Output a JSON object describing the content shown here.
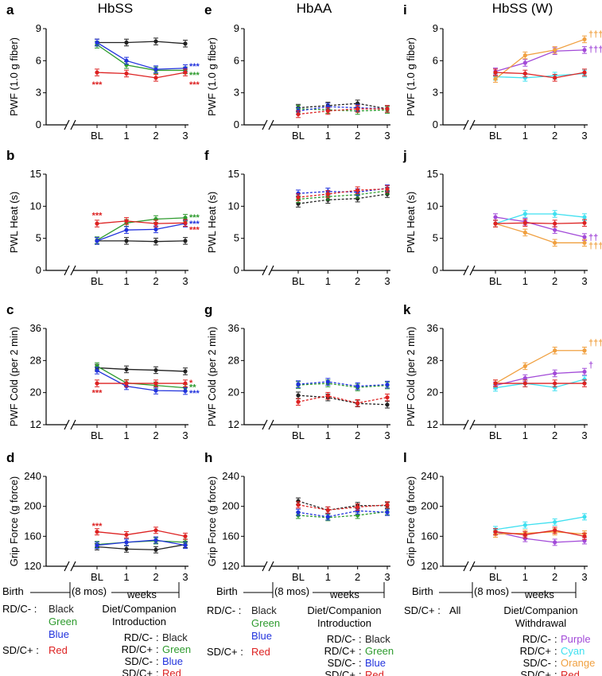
{
  "columns": [
    {
      "title": "HbSS"
    },
    {
      "title": "HbAA"
    },
    {
      "title": "HbSS (W)"
    }
  ],
  "colors": {
    "black": "#222222",
    "green": "#2e9b2e",
    "blue": "#2233dd",
    "red": "#dd2222",
    "purple": "#a24ad8",
    "cyan": "#3fe0f0",
    "orange": "#f0a040"
  },
  "bottom": {
    "birth": "Birth",
    "age": "(8 mos)",
    "weeks": "weeks",
    "rd_c_minus": "RD/C- :",
    "black": "Black",
    "green": "Green",
    "blue": "Blue",
    "sd_c_plus": "SD/C+ :",
    "red": "Red",
    "all": "All",
    "intro_title_1": "Diet/Companion",
    "intro_title_2": "Introduction",
    "withdrawal_title_1": "Diet/Companion",
    "withdrawal_title_2": "Withdrawal",
    "legend_groups": [
      "RD/C-",
      "RD/C+",
      "SD/C-",
      "SD/C+"
    ],
    "intro_colors": [
      "Black",
      "Green",
      "Blue",
      "Red"
    ],
    "withdrawal_colors": [
      "Purple",
      "Cyan",
      "Orange",
      "Red"
    ]
  },
  "chart_data": [
    {
      "panel": "a",
      "type": "line",
      "ylabel": "PWF (1.0 g fiber)",
      "ylim": [
        0,
        9
      ],
      "yticks": [
        0,
        3,
        6,
        9
      ],
      "x": [
        "BL",
        "1",
        "2",
        "3"
      ],
      "series": [
        {
          "color": "black",
          "values": [
            7.7,
            7.7,
            7.8,
            7.6
          ]
        },
        {
          "color": "green",
          "values": [
            7.5,
            5.6,
            5.1,
            5.1
          ]
        },
        {
          "color": "blue",
          "values": [
            7.7,
            6.0,
            5.2,
            5.3
          ]
        },
        {
          "color": "red",
          "values": [
            4.9,
            4.8,
            4.4,
            4.9
          ]
        }
      ],
      "annotations": [
        {
          "text": "***",
          "color": "red",
          "x": "BL",
          "y": 3.8
        },
        {
          "text": "***",
          "color": "red",
          "x": "3",
          "y": 3.8
        },
        {
          "text": "***",
          "color": "blue",
          "x": "3",
          "y": 5.5
        },
        {
          "text": "***",
          "color": "green",
          "x": "3",
          "y": 4.7
        }
      ]
    },
    {
      "panel": "b",
      "type": "line",
      "ylabel": "PWL Heat (s)",
      "ylim": [
        0,
        15
      ],
      "yticks": [
        0,
        5,
        10,
        15
      ],
      "x": [
        "BL",
        "1",
        "2",
        "3"
      ],
      "series": [
        {
          "color": "black",
          "values": [
            4.6,
            4.6,
            4.5,
            4.6
          ]
        },
        {
          "color": "green",
          "values": [
            4.7,
            7.4,
            8.0,
            8.2
          ]
        },
        {
          "color": "blue",
          "values": [
            4.6,
            6.3,
            6.4,
            7.3
          ]
        },
        {
          "color": "red",
          "values": [
            7.3,
            7.7,
            7.3,
            7.4
          ]
        }
      ],
      "annotations": [
        {
          "text": "***",
          "color": "red",
          "x": "BL",
          "y": 8.6
        },
        {
          "text": "***",
          "color": "green",
          "x": "3",
          "y": 8.3
        },
        {
          "text": "***",
          "color": "blue",
          "x": "3",
          "y": 7.3
        },
        {
          "text": "***",
          "color": "red",
          "x": "3",
          "y": 6.4
        }
      ]
    },
    {
      "panel": "c",
      "type": "line",
      "ylabel": "PWF Cold (per 2 min)",
      "ylim": [
        12,
        36
      ],
      "yticks": [
        12,
        20,
        28,
        36
      ],
      "x": [
        "BL",
        "1",
        "2",
        "3"
      ],
      "series": [
        {
          "color": "black",
          "values": [
            26.2,
            25.8,
            25.6,
            25.3
          ]
        },
        {
          "color": "green",
          "values": [
            26.6,
            22.4,
            21.8,
            21.2
          ]
        },
        {
          "color": "blue",
          "values": [
            25.5,
            21.6,
            20.5,
            20.4
          ]
        },
        {
          "color": "red",
          "values": [
            22.3,
            22.3,
            22.3,
            22.3
          ]
        }
      ],
      "annotations": [
        {
          "text": "***",
          "color": "red",
          "x": "BL",
          "y": 20.0
        },
        {
          "text": "*",
          "color": "red",
          "x": "3",
          "y": 22.5
        },
        {
          "text": "**",
          "color": "green",
          "x": "3",
          "y": 21.4
        },
        {
          "text": "***",
          "color": "blue",
          "x": "3",
          "y": 19.9
        }
      ]
    },
    {
      "panel": "d",
      "type": "line",
      "ylabel": "Grip Force (g force)",
      "ylim": [
        120,
        240
      ],
      "yticks": [
        120,
        160,
        200,
        240
      ],
      "x": [
        "BL",
        "1",
        "2",
        "3"
      ],
      "series": [
        {
          "color": "black",
          "values": [
            146,
            143,
            142,
            149
          ]
        },
        {
          "color": "green",
          "values": [
            149,
            152,
            154,
            152
          ]
        },
        {
          "color": "blue",
          "values": [
            148,
            152,
            155,
            148
          ]
        },
        {
          "color": "red",
          "values": [
            166,
            162,
            168,
            160
          ]
        }
      ],
      "annotations": [
        {
          "text": "***",
          "color": "red",
          "x": "BL",
          "y": 174
        }
      ]
    },
    {
      "panel": "e",
      "type": "line",
      "ylabel": "PWF (1.0 g fiber)",
      "ylim": [
        0,
        9
      ],
      "yticks": [
        0,
        3,
        6,
        9
      ],
      "dashed": true,
      "x": [
        "BL",
        "1",
        "2",
        "3"
      ],
      "series": [
        {
          "color": "black",
          "values": [
            1.6,
            1.8,
            2.0,
            1.5
          ]
        },
        {
          "color": "green",
          "values": [
            1.5,
            1.4,
            1.3,
            1.4
          ]
        },
        {
          "color": "blue",
          "values": [
            1.3,
            1.7,
            1.6,
            1.5
          ]
        },
        {
          "color": "red",
          "values": [
            1.0,
            1.3,
            1.5,
            1.5
          ]
        }
      ],
      "annotations": []
    },
    {
      "panel": "f",
      "type": "line",
      "ylabel": "PWL Heat (s)",
      "ylim": [
        0,
        15
      ],
      "yticks": [
        0,
        5,
        10,
        15
      ],
      "dashed": true,
      "x": [
        "BL",
        "1",
        "2",
        "3"
      ],
      "series": [
        {
          "color": "black",
          "values": [
            10.4,
            11.0,
            11.2,
            11.9
          ]
        },
        {
          "color": "green",
          "values": [
            11.1,
            11.5,
            11.8,
            12.4
          ]
        },
        {
          "color": "blue",
          "values": [
            12.0,
            12.3,
            12.2,
            12.8
          ]
        },
        {
          "color": "red",
          "values": [
            11.4,
            11.9,
            12.5,
            12.7
          ]
        }
      ],
      "annotations": []
    },
    {
      "panel": "g",
      "type": "line",
      "ylabel": "PWF Cold (per 2 min)",
      "ylim": [
        12,
        36
      ],
      "yticks": [
        12,
        20,
        28,
        36
      ],
      "dashed": true,
      "x": [
        "BL",
        "1",
        "2",
        "3"
      ],
      "series": [
        {
          "color": "black",
          "values": [
            19.3,
            18.8,
            17.3,
            17.0
          ]
        },
        {
          "color": "green",
          "values": [
            21.9,
            22.3,
            21.3,
            21.8
          ]
        },
        {
          "color": "blue",
          "values": [
            22.1,
            22.7,
            21.6,
            22.0
          ]
        },
        {
          "color": "red",
          "values": [
            17.7,
            19.2,
            17.4,
            18.8
          ]
        }
      ],
      "annotations": []
    },
    {
      "panel": "h",
      "type": "line",
      "ylabel": "Grip Force (g force)",
      "ylim": [
        120,
        240
      ],
      "yticks": [
        120,
        160,
        200,
        240
      ],
      "dashed": true,
      "x": [
        "BL",
        "1",
        "2",
        "3"
      ],
      "series": [
        {
          "color": "black",
          "values": [
            207,
            195,
            201,
            201
          ]
        },
        {
          "color": "green",
          "values": [
            188,
            185,
            188,
            193
          ]
        },
        {
          "color": "blue",
          "values": [
            192,
            186,
            194,
            192
          ]
        },
        {
          "color": "red",
          "values": [
            202,
            195,
            199,
            202
          ]
        }
      ],
      "annotations": []
    },
    {
      "panel": "i",
      "type": "line",
      "ylabel": "PWF (1.0 g fiber)",
      "ylim": [
        0,
        9
      ],
      "yticks": [
        0,
        3,
        6,
        9
      ],
      "x": [
        "BL",
        "1",
        "2",
        "3"
      ],
      "series": [
        {
          "color": "purple",
          "values": [
            5.0,
            5.8,
            6.9,
            7.0
          ]
        },
        {
          "color": "cyan",
          "values": [
            4.5,
            4.4,
            4.6,
            4.8
          ]
        },
        {
          "color": "orange",
          "values": [
            4.3,
            6.5,
            7.0,
            8.0
          ]
        },
        {
          "color": "red",
          "values": [
            4.9,
            4.8,
            4.4,
            4.9
          ]
        }
      ],
      "annotations": [
        {
          "text": "†††",
          "color": "orange",
          "x": "3",
          "y": 8.5
        },
        {
          "text": "†††",
          "color": "purple",
          "x": "3",
          "y": 7.1
        }
      ]
    },
    {
      "panel": "j",
      "type": "line",
      "ylabel": "PWL Heat (s)",
      "ylim": [
        0,
        15
      ],
      "yticks": [
        0,
        5,
        10,
        15
      ],
      "x": [
        "BL",
        "1",
        "2",
        "3"
      ],
      "series": [
        {
          "color": "purple",
          "values": [
            8.3,
            7.6,
            6.3,
            5.2
          ]
        },
        {
          "color": "cyan",
          "values": [
            7.3,
            8.8,
            8.8,
            8.3
          ]
        },
        {
          "color": "orange",
          "values": [
            7.3,
            5.9,
            4.3,
            4.3
          ]
        },
        {
          "color": "red",
          "values": [
            7.3,
            7.4,
            7.3,
            7.4
          ]
        }
      ],
      "annotations": [
        {
          "text": "††",
          "color": "purple",
          "x": "3",
          "y": 5.2
        },
        {
          "text": "†††",
          "color": "orange",
          "x": "3",
          "y": 3.9
        }
      ]
    },
    {
      "panel": "k",
      "type": "line",
      "ylabel": "PWF Cold (per 2 min)",
      "ylim": [
        12,
        36
      ],
      "yticks": [
        12,
        20,
        28,
        36
      ],
      "x": [
        "BL",
        "1",
        "2",
        "3"
      ],
      "series": [
        {
          "color": "purple",
          "values": [
            21.8,
            23.6,
            24.8,
            25.2
          ]
        },
        {
          "color": "cyan",
          "values": [
            21.2,
            22.3,
            21.3,
            23.3
          ]
        },
        {
          "color": "orange",
          "values": [
            22.3,
            26.6,
            30.5,
            30.5
          ]
        },
        {
          "color": "red",
          "values": [
            22.3,
            22.3,
            22.3,
            22.3
          ]
        }
      ],
      "annotations": [
        {
          "text": "†††",
          "color": "orange",
          "x": "3",
          "y": 32.5
        },
        {
          "text": "†",
          "color": "purple",
          "x": "3",
          "y": 27.0
        }
      ]
    },
    {
      "panel": "l",
      "type": "line",
      "ylabel": "Grip Force (g force)",
      "ylim": [
        120,
        240
      ],
      "yticks": [
        120,
        160,
        200,
        240
      ],
      "x": [
        "BL",
        "1",
        "2",
        "3"
      ],
      "series": [
        {
          "color": "purple",
          "values": [
            166,
            157,
            152,
            154
          ]
        },
        {
          "color": "cyan",
          "values": [
            169,
            175,
            179,
            186
          ]
        },
        {
          "color": "orange",
          "values": [
            163,
            164,
            166,
            163
          ]
        },
        {
          "color": "red",
          "values": [
            166,
            162,
            168,
            160
          ]
        }
      ],
      "annotations": []
    }
  ]
}
